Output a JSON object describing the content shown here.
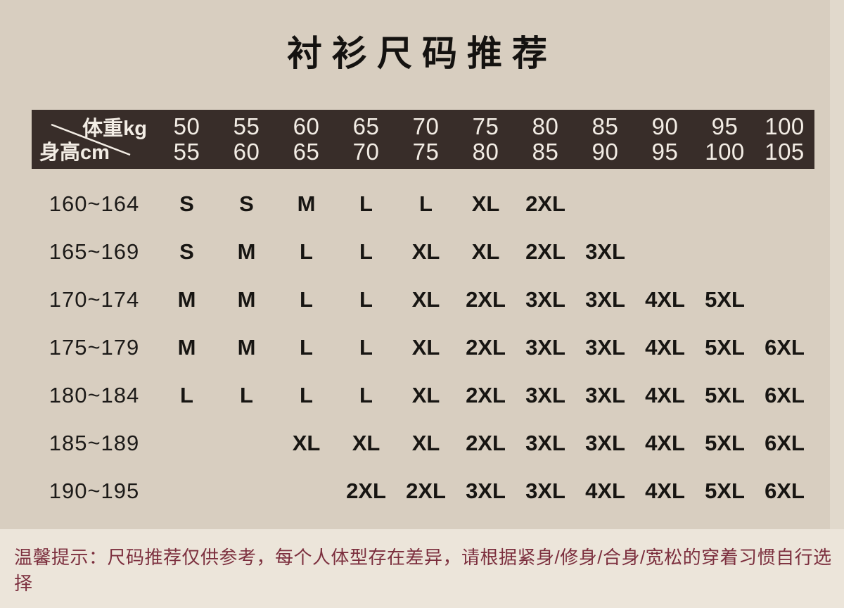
{
  "title": "衬衫尺码推荐",
  "note": "温馨提示：尺码推荐仅供参考，每个人体型存在差异，请根据紧身/修身/合身/宽松的穿着习惯自行选择",
  "colors": {
    "page_background": "#d8cec0",
    "header_background": "#382d29",
    "header_text": "#f3ede5",
    "body_text": "#171512",
    "note_text": "#7c2f3e",
    "note_background": "#ece5da"
  },
  "table": {
    "corner_top": "体重kg",
    "corner_bottom": "身高cm",
    "columns": [
      [
        "50",
        "55"
      ],
      [
        "55",
        "60"
      ],
      [
        "60",
        "65"
      ],
      [
        "65",
        "70"
      ],
      [
        "70",
        "75"
      ],
      [
        "75",
        "80"
      ],
      [
        "80",
        "85"
      ],
      [
        "85",
        "90"
      ],
      [
        "90",
        "95"
      ],
      [
        "95",
        "100"
      ],
      [
        "100",
        "105"
      ]
    ],
    "rows": [
      {
        "height": "160~164",
        "sizes": [
          "S",
          "S",
          "M",
          "L",
          "L",
          "XL",
          "2XL",
          "",
          "",
          "",
          ""
        ]
      },
      {
        "height": "165~169",
        "sizes": [
          "S",
          "M",
          "L",
          "L",
          "XL",
          "XL",
          "2XL",
          "3XL",
          "",
          "",
          ""
        ]
      },
      {
        "height": "170~174",
        "sizes": [
          "M",
          "M",
          "L",
          "L",
          "XL",
          "2XL",
          "3XL",
          "3XL",
          "4XL",
          "5XL",
          ""
        ]
      },
      {
        "height": "175~179",
        "sizes": [
          "M",
          "M",
          "L",
          "L",
          "XL",
          "2XL",
          "3XL",
          "3XL",
          "4XL",
          "5XL",
          "6XL"
        ]
      },
      {
        "height": "180~184",
        "sizes": [
          "L",
          "L",
          "L",
          "L",
          "XL",
          "2XL",
          "3XL",
          "3XL",
          "4XL",
          "5XL",
          "6XL"
        ]
      },
      {
        "height": "185~189",
        "sizes": [
          "",
          "",
          "XL",
          "XL",
          "XL",
          "2XL",
          "3XL",
          "3XL",
          "4XL",
          "5XL",
          "6XL"
        ]
      },
      {
        "height": "190~195",
        "sizes": [
          "",
          "",
          "",
          "2XL",
          "2XL",
          "3XL",
          "3XL",
          "4XL",
          "4XL",
          "5XL",
          "6XL"
        ]
      }
    ]
  },
  "chart_data": {
    "type": "table",
    "title": "衬衫尺码推荐",
    "x_axis_label": "体重kg",
    "y_axis_label": "身高cm",
    "weight_ranges_kg": [
      "50-55",
      "55-60",
      "60-65",
      "65-70",
      "70-75",
      "75-80",
      "80-85",
      "85-90",
      "90-95",
      "95-100",
      "100-105"
    ],
    "height_ranges_cm": [
      "160~164",
      "165~169",
      "170~174",
      "175~179",
      "180~184",
      "185~189",
      "190~195"
    ],
    "size_matrix": [
      [
        "S",
        "S",
        "M",
        "L",
        "L",
        "XL",
        "2XL",
        "",
        "",
        "",
        ""
      ],
      [
        "S",
        "M",
        "L",
        "L",
        "XL",
        "XL",
        "2XL",
        "3XL",
        "",
        "",
        ""
      ],
      [
        "M",
        "M",
        "L",
        "L",
        "XL",
        "2XL",
        "3XL",
        "3XL",
        "4XL",
        "5XL",
        ""
      ],
      [
        "M",
        "M",
        "L",
        "L",
        "XL",
        "2XL",
        "3XL",
        "3XL",
        "4XL",
        "5XL",
        "6XL"
      ],
      [
        "L",
        "L",
        "L",
        "L",
        "XL",
        "2XL",
        "3XL",
        "3XL",
        "4XL",
        "5XL",
        "6XL"
      ],
      [
        "",
        "",
        "XL",
        "XL",
        "XL",
        "2XL",
        "3XL",
        "3XL",
        "4XL",
        "5XL",
        "6XL"
      ],
      [
        "",
        "",
        "",
        "2XL",
        "2XL",
        "3XL",
        "3XL",
        "4XL",
        "4XL",
        "5XL",
        "6XL"
      ]
    ],
    "footnote": "温馨提示：尺码推荐仅供参考，每个人体型存在差异，请根据紧身/修身/合身/宽松的穿着习惯自行选择"
  }
}
